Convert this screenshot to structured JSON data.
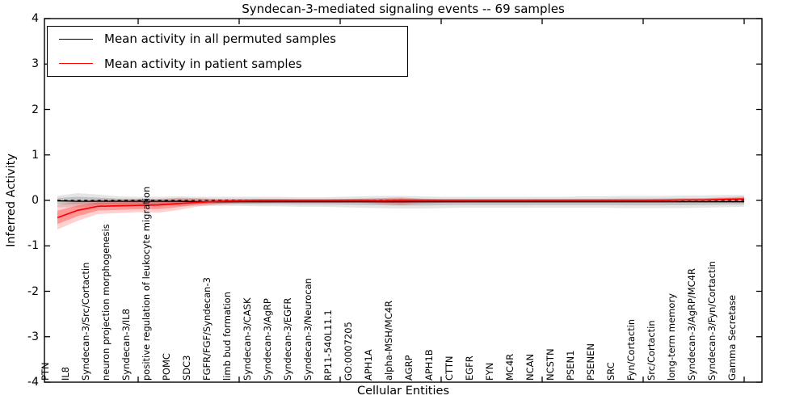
{
  "title": "Syndecan-3-mediated signaling events -- 69 samples",
  "axes": {
    "ylabel": "Inferred Activity",
    "xlabel": "Cellular Entities"
  },
  "legend": {
    "items": [
      {
        "label": "Mean activity in all permuted samples",
        "color": "#000000"
      },
      {
        "label": "Mean activity in patient samples",
        "color": "#ff0000"
      }
    ]
  },
  "colors": {
    "permuted_line": "#000000",
    "permuted_band": "#000000",
    "patient_line": "#ff0000",
    "patient_band": "#ff0000",
    "background": "#ffffff"
  },
  "chart_data": {
    "type": "line",
    "title": "Syndecan-3-mediated signaling events -- 69 samples",
    "xlabel": "Cellular Entities",
    "ylabel": "Inferred Activity",
    "ylim": [
      -4,
      4
    ],
    "y_ticks": [
      4,
      3,
      2,
      1,
      0,
      -1,
      -2,
      -3,
      -4
    ],
    "x_major_tick_every": 5,
    "grid": false,
    "legend_position": "upper left",
    "zero_reference_line": {
      "style": "dashed",
      "color": "#000000",
      "y": 0
    },
    "categories": [
      "PTN",
      "IL8",
      "Syndecan-3/Src/Cortactin",
      "neuron projection morphogenesis",
      "Syndecan-3/IL8",
      "positive regulation of leukocyte migration",
      "POMC",
      "SDC3",
      "FGFR/FGF/Syndecan-3",
      "limb bud formation",
      "Syndecan-3/CASK",
      "Syndecan-3/AgRP",
      "Syndecan-3/EGFR",
      "Syndecan-3/Neurocan",
      "RP11-540L11.1",
      "GO:0007205",
      "APH1A",
      "alpha-MSH/MC4R",
      "AGRP",
      "APH1B",
      "CTTN",
      "EGFR",
      "FYN",
      "MC4R",
      "NCAN",
      "NCSTN",
      "PSEN1",
      "PSENEN",
      "SRC",
      "Fyn/Cortactin",
      "Src/Cortactin",
      "long-term memory",
      "Syndecan-3/AgRP/MC4R",
      "Syndecan-3/Fyn/Cortactin",
      "Gamma Secretase"
    ],
    "series": [
      {
        "name": "Mean activity in all permuted samples",
        "color": "#000000",
        "values": [
          -0.01,
          -0.02,
          -0.02,
          -0.02,
          -0.02,
          -0.02,
          -0.02,
          -0.03,
          -0.03,
          -0.03,
          -0.03,
          -0.03,
          -0.03,
          -0.03,
          -0.03,
          -0.03,
          -0.03,
          -0.03,
          -0.03,
          -0.03,
          -0.03,
          -0.03,
          -0.03,
          -0.03,
          -0.03,
          -0.03,
          -0.03,
          -0.03,
          -0.03,
          -0.03,
          -0.03,
          -0.03,
          -0.03,
          -0.03,
          -0.03
        ],
        "band_upper": [
          0.1,
          0.16,
          0.13,
          0.09,
          0.08,
          0.08,
          0.09,
          0.08,
          0.08,
          0.08,
          0.08,
          0.08,
          0.07,
          0.07,
          0.08,
          0.09,
          0.1,
          0.1,
          0.09,
          0.08,
          0.08,
          0.08,
          0.08,
          0.08,
          0.08,
          0.08,
          0.09,
          0.09,
          0.1,
          0.1,
          0.1,
          0.11,
          0.11,
          0.12,
          0.12
        ],
        "band_lower": [
          -0.15,
          -0.15,
          -0.14,
          -0.13,
          -0.12,
          -0.12,
          -0.12,
          -0.12,
          -0.12,
          -0.12,
          -0.13,
          -0.13,
          -0.14,
          -0.14,
          -0.15,
          -0.16,
          -0.17,
          -0.18,
          -0.18,
          -0.17,
          -0.16,
          -0.16,
          -0.16,
          -0.16,
          -0.16,
          -0.16,
          -0.16,
          -0.16,
          -0.17,
          -0.17,
          -0.17,
          -0.17,
          -0.16,
          -0.15,
          -0.14
        ]
      },
      {
        "name": "Mean activity in patient samples",
        "color": "#ff0000",
        "values": [
          -0.38,
          -0.22,
          -0.13,
          -0.12,
          -0.11,
          -0.1,
          -0.07,
          -0.04,
          -0.02,
          -0.01,
          0.0,
          0.0,
          0.0,
          0.0,
          0.0,
          0.0,
          -0.01,
          0.0,
          0.0,
          0.0,
          0.0,
          0.0,
          0.0,
          0.0,
          0.0,
          0.0,
          0.0,
          0.0,
          0.0,
          0.0,
          0.0,
          0.01,
          0.01,
          0.02,
          0.03
        ],
        "band_upper": [
          -0.1,
          -0.02,
          0.02,
          0.02,
          0.03,
          0.02,
          0.06,
          0.05,
          0.03,
          0.03,
          0.03,
          0.03,
          0.03,
          0.03,
          0.03,
          0.04,
          0.05,
          0.07,
          0.04,
          0.03,
          0.03,
          0.03,
          0.03,
          0.03,
          0.03,
          0.03,
          0.03,
          0.03,
          0.03,
          0.03,
          0.04,
          0.04,
          0.05,
          0.07,
          0.09
        ],
        "band_lower": [
          -0.64,
          -0.45,
          -0.3,
          -0.28,
          -0.26,
          -0.27,
          -0.21,
          -0.13,
          -0.09,
          -0.07,
          -0.06,
          -0.05,
          -0.05,
          -0.05,
          -0.05,
          -0.05,
          -0.08,
          -0.11,
          -0.07,
          -0.05,
          -0.05,
          -0.04,
          -0.04,
          -0.04,
          -0.04,
          -0.04,
          -0.04,
          -0.04,
          -0.04,
          -0.04,
          -0.04,
          -0.03,
          -0.03,
          -0.03,
          -0.03
        ]
      }
    ]
  }
}
